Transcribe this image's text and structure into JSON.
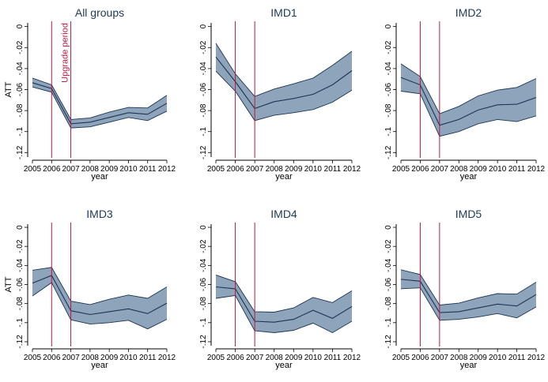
{
  "chart_data": [
    {
      "type": "area",
      "title": "All groups",
      "xlabel": "year",
      "ylabel": "ATT",
      "x": [
        2005,
        2006,
        2007,
        2008,
        2009,
        2010,
        2011,
        2012
      ],
      "ylim": [
        -0.125,
        0.005
      ],
      "yticks": [
        0,
        -0.02,
        -0.04,
        -0.06,
        -0.08,
        -0.1,
        -0.12
      ],
      "ytick_labels": [
        "0",
        "-.02",
        "-.04",
        "-.06",
        "-.08",
        "-.1",
        "-.12"
      ],
      "vlines": [
        2006,
        2007
      ],
      "annotation": "Upgrade period",
      "series": [
        {
          "estimate": [
            -0.0535,
            -0.059,
            -0.0925,
            -0.091,
            -0.0865,
            -0.082,
            -0.0835,
            -0.073
          ],
          "lower": [
            -0.0575,
            -0.0625,
            -0.0965,
            -0.0955,
            -0.091,
            -0.0865,
            -0.0895,
            -0.0805
          ],
          "upper": [
            -0.049,
            -0.0555,
            -0.0885,
            -0.087,
            -0.0815,
            -0.077,
            -0.0775,
            -0.0655
          ]
        }
      ]
    },
    {
      "type": "area",
      "title": "IMD1",
      "xlabel": "year",
      "ylabel": "",
      "x": [
        2005,
        2006,
        2007,
        2008,
        2009,
        2010,
        2011,
        2012
      ],
      "ylim": [
        -0.125,
        0.005
      ],
      "yticks": [
        0,
        -0.02,
        -0.04,
        -0.06,
        -0.08,
        -0.1,
        -0.12
      ],
      "ytick_labels": [
        "0",
        "-.02",
        "-.04",
        "-.06",
        "-.08",
        "-.1",
        "-.12"
      ],
      "vlines": [
        2006,
        2007
      ],
      "series": [
        {
          "estimate": [
            -0.029,
            -0.0525,
            -0.078,
            -0.0715,
            -0.0685,
            -0.0645,
            -0.0555,
            -0.042
          ],
          "lower": [
            -0.0425,
            -0.0615,
            -0.0895,
            -0.0845,
            -0.082,
            -0.079,
            -0.072,
            -0.0605
          ],
          "upper": [
            -0.016,
            -0.045,
            -0.0665,
            -0.0595,
            -0.0545,
            -0.049,
            -0.037,
            -0.0235
          ]
        }
      ]
    },
    {
      "type": "area",
      "title": "IMD2",
      "xlabel": "year",
      "ylabel": "",
      "x": [
        2005,
        2006,
        2007,
        2008,
        2009,
        2010,
        2011,
        2012
      ],
      "ylim": [
        -0.125,
        0.005
      ],
      "yticks": [
        0,
        -0.02,
        -0.04,
        -0.06,
        -0.08,
        -0.1,
        -0.12
      ],
      "ytick_labels": [
        "0",
        "-.02",
        "-.04",
        "-.06",
        "-.08",
        "-.1",
        "-.12"
      ],
      "vlines": [
        2006,
        2007
      ],
      "series": [
        {
          "estimate": [
            -0.0485,
            -0.0555,
            -0.094,
            -0.0885,
            -0.0795,
            -0.0745,
            -0.074,
            -0.0675
          ],
          "lower": [
            -0.0615,
            -0.064,
            -0.1045,
            -0.1,
            -0.0925,
            -0.0885,
            -0.0905,
            -0.085
          ],
          "upper": [
            -0.0355,
            -0.0475,
            -0.083,
            -0.076,
            -0.066,
            -0.0605,
            -0.058,
            -0.0495
          ]
        }
      ]
    },
    {
      "type": "area",
      "title": "IMD3",
      "xlabel": "year",
      "ylabel": "ATT",
      "x": [
        2005,
        2006,
        2007,
        2008,
        2009,
        2010,
        2011,
        2012
      ],
      "ylim": [
        -0.125,
        0.005
      ],
      "yticks": [
        0,
        -0.02,
        -0.04,
        -0.06,
        -0.08,
        -0.1,
        -0.12
      ],
      "ytick_labels": [
        "0",
        "-.02",
        "-.04",
        "-.06",
        "-.08",
        "-.1",
        "-.12"
      ],
      "vlines": [
        2006,
        2007
      ],
      "series": [
        {
          "estimate": [
            -0.0585,
            -0.0505,
            -0.0875,
            -0.0915,
            -0.0885,
            -0.0855,
            -0.0905,
            -0.0795
          ],
          "lower": [
            -0.072,
            -0.058,
            -0.097,
            -0.1015,
            -0.1,
            -0.0975,
            -0.1065,
            -0.0965
          ],
          "upper": [
            -0.045,
            -0.042,
            -0.0775,
            -0.081,
            -0.0755,
            -0.071,
            -0.0745,
            -0.0625
          ]
        }
      ]
    },
    {
      "type": "area",
      "title": "IMD4",
      "xlabel": "year",
      "ylabel": "",
      "x": [
        2005,
        2006,
        2007,
        2008,
        2009,
        2010,
        2011,
        2012
      ],
      "ylim": [
        -0.125,
        0.005
      ],
      "yticks": [
        0,
        -0.02,
        -0.04,
        -0.06,
        -0.08,
        -0.1,
        -0.12
      ],
      "ytick_labels": [
        "0",
        "-.02",
        "-.04",
        "-.06",
        "-.08",
        "-.1",
        "-.12"
      ],
      "vlines": [
        2006,
        2007
      ],
      "series": [
        {
          "estimate": [
            -0.0625,
            -0.0645,
            -0.0985,
            -0.0995,
            -0.0965,
            -0.087,
            -0.0955,
            -0.083
          ],
          "lower": [
            -0.0745,
            -0.0715,
            -0.1085,
            -0.1105,
            -0.108,
            -0.1005,
            -0.1105,
            -0.0985
          ],
          "upper": [
            -0.05,
            -0.057,
            -0.0885,
            -0.089,
            -0.0845,
            -0.0735,
            -0.079,
            -0.0665
          ]
        }
      ]
    },
    {
      "type": "area",
      "title": "IMD5",
      "xlabel": "year",
      "ylabel": "",
      "x": [
        2005,
        2006,
        2007,
        2008,
        2009,
        2010,
        2011,
        2012
      ],
      "ylim": [
        -0.125,
        0.005
      ],
      "yticks": [
        0,
        -0.02,
        -0.04,
        -0.06,
        -0.08,
        -0.1,
        -0.12
      ],
      "ytick_labels": [
        "0",
        "-.02",
        "-.04",
        "-.06",
        "-.08",
        "-.1",
        "-.12"
      ],
      "vlines": [
        2006,
        2007
      ],
      "series": [
        {
          "estimate": [
            -0.0545,
            -0.0565,
            -0.0895,
            -0.0885,
            -0.0845,
            -0.0805,
            -0.0825,
            -0.0705
          ],
          "lower": [
            -0.0645,
            -0.0635,
            -0.0975,
            -0.0965,
            -0.094,
            -0.0905,
            -0.095,
            -0.0835
          ],
          "upper": [
            -0.0445,
            -0.0495,
            -0.0815,
            -0.0795,
            -0.074,
            -0.0695,
            -0.07,
            -0.0575
          ]
        }
      ]
    }
  ],
  "colors": {
    "band_fill": "#8ea4ba",
    "band_edge": "#1c3553",
    "estimate_line": "#1c3553",
    "vline": "#c0173f",
    "title": "#1f3a5a",
    "axis": "#000000"
  }
}
